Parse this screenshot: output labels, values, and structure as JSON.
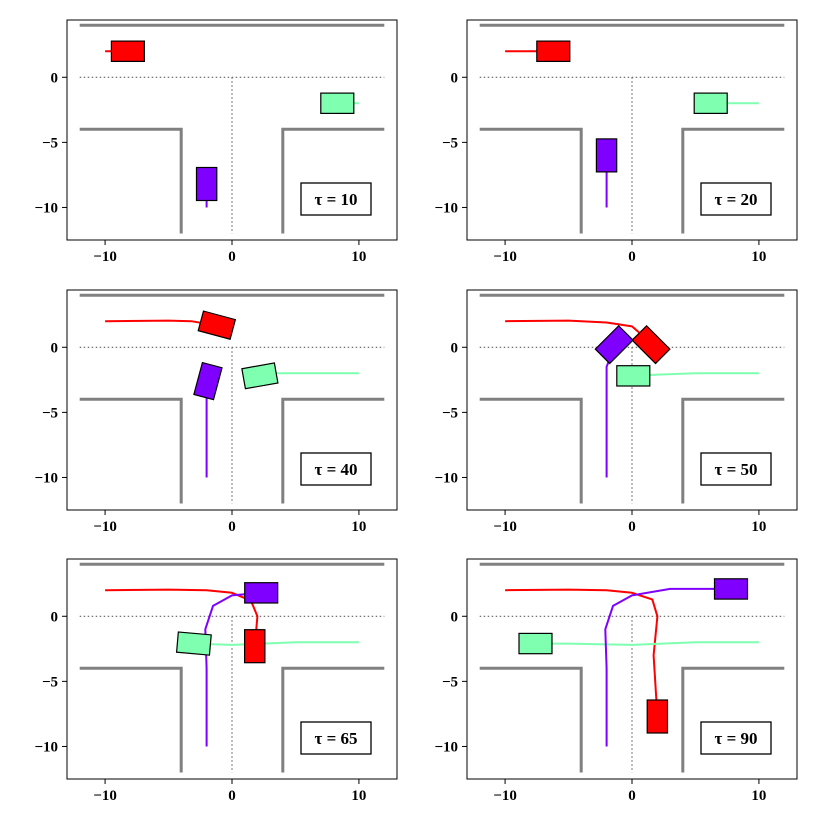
{
  "chart_data": [
    {
      "type": "scatter",
      "annotation": "τ = 10",
      "xlim": [
        -13,
        13
      ],
      "ylim": [
        -12.5,
        4.4
      ],
      "xticks": [
        -10,
        0,
        10
      ],
      "yticks": [
        0,
        -5,
        -10
      ],
      "walls": [
        [
          [
            -12,
            4
          ],
          [
            12,
            4
          ]
        ],
        [
          [
            -12,
            -4
          ],
          [
            -4,
            -4
          ],
          [
            -4,
            -12
          ]
        ],
        [
          [
            12,
            -4
          ],
          [
            4,
            -4
          ],
          [
            4,
            -12
          ]
        ]
      ],
      "centerlines": [
        [
          [
            -12,
            0
          ],
          [
            12,
            0
          ]
        ],
        [
          [
            0,
            0
          ],
          [
            0,
            -12
          ]
        ]
      ],
      "vehicles": [
        {
          "name": "red",
          "color": "#ff0000",
          "path": [
            [
              -10,
              2
            ],
            [
              -8.2,
              2
            ]
          ],
          "body": {
            "x": -8.2,
            "y": 2,
            "heading": 0
          }
        },
        {
          "name": "green",
          "color": "#7fffb0",
          "path": [
            [
              10,
              -2
            ],
            [
              8.3,
              -2
            ]
          ],
          "body": {
            "x": 8.3,
            "y": -2,
            "heading": 180
          }
        },
        {
          "name": "purple",
          "color": "#8000ff",
          "path": [
            [
              -2,
              -10
            ],
            [
              -2,
              -8.2
            ]
          ],
          "body": {
            "x": -2,
            "y": -8.2,
            "heading": 90
          }
        }
      ]
    },
    {
      "type": "scatter",
      "annotation": "τ = 20",
      "xlim": [
        -13,
        13
      ],
      "ylim": [
        -12.5,
        4.4
      ],
      "xticks": [
        -10,
        0,
        10
      ],
      "yticks": [
        0,
        -5,
        -10
      ],
      "walls": [
        [
          [
            -12,
            4
          ],
          [
            12,
            4
          ]
        ],
        [
          [
            -12,
            -4
          ],
          [
            -4,
            -4
          ],
          [
            -4,
            -12
          ]
        ],
        [
          [
            12,
            -4
          ],
          [
            4,
            -4
          ],
          [
            4,
            -12
          ]
        ]
      ],
      "centerlines": [
        [
          [
            -12,
            0
          ],
          [
            12,
            0
          ]
        ],
        [
          [
            0,
            0
          ],
          [
            0,
            -12
          ]
        ]
      ],
      "vehicles": [
        {
          "name": "red",
          "color": "#ff0000",
          "path": [
            [
              -10,
              2
            ],
            [
              -6.2,
              2
            ]
          ],
          "body": {
            "x": -6.2,
            "y": 2,
            "heading": 0
          }
        },
        {
          "name": "green",
          "color": "#7fffb0",
          "path": [
            [
              10,
              -2
            ],
            [
              6.2,
              -2
            ]
          ],
          "body": {
            "x": 6.2,
            "y": -2,
            "heading": 180
          }
        },
        {
          "name": "purple",
          "color": "#8000ff",
          "path": [
            [
              -2,
              -10
            ],
            [
              -2,
              -6
            ]
          ],
          "body": {
            "x": -2,
            "y": -6,
            "heading": 90
          }
        }
      ]
    },
    {
      "type": "scatter",
      "annotation": "τ = 40",
      "xlim": [
        -13,
        13
      ],
      "ylim": [
        -12.5,
        4.4
      ],
      "xticks": [
        -10,
        0,
        10
      ],
      "yticks": [
        0,
        -5,
        -10
      ],
      "walls": [
        [
          [
            -12,
            4
          ],
          [
            12,
            4
          ]
        ],
        [
          [
            -12,
            -4
          ],
          [
            -4,
            -4
          ],
          [
            -4,
            -12
          ]
        ],
        [
          [
            12,
            -4
          ],
          [
            4,
            -4
          ],
          [
            4,
            -12
          ]
        ]
      ],
      "centerlines": [
        [
          [
            -12,
            0
          ],
          [
            12,
            0
          ]
        ],
        [
          [
            0,
            0
          ],
          [
            0,
            -12
          ]
        ]
      ],
      "vehicles": [
        {
          "name": "red",
          "color": "#ff0000",
          "path": [
            [
              -10,
              2
            ],
            [
              -5,
              2.05
            ],
            [
              -3.2,
              2
            ],
            [
              -2,
              1.8
            ],
            [
              -1.2,
              1.7
            ]
          ],
          "body": {
            "x": -1.2,
            "y": 1.7,
            "heading": -15
          }
        },
        {
          "name": "green",
          "color": "#7fffb0",
          "path": [
            [
              10,
              -2
            ],
            [
              6,
              -2
            ],
            [
              3.5,
              -2
            ],
            [
              2.2,
              -2.2
            ]
          ],
          "body": {
            "x": 2.2,
            "y": -2.2,
            "heading": 190
          }
        },
        {
          "name": "purple",
          "color": "#8000ff",
          "path": [
            [
              -2,
              -10
            ],
            [
              -2,
              -5
            ],
            [
              -2,
              -3.3
            ],
            [
              -1.9,
              -2.6
            ]
          ],
          "body": {
            "x": -1.9,
            "y": -2.6,
            "heading": 75
          }
        }
      ]
    },
    {
      "type": "scatter",
      "annotation": "τ = 50",
      "xlim": [
        -13,
        13
      ],
      "ylim": [
        -12.5,
        4.4
      ],
      "xticks": [
        -10,
        0,
        10
      ],
      "yticks": [
        0,
        -5,
        -10
      ],
      "walls": [
        [
          [
            -12,
            4
          ],
          [
            12,
            4
          ]
        ],
        [
          [
            -12,
            -4
          ],
          [
            -4,
            -4
          ],
          [
            -4,
            -12
          ]
        ],
        [
          [
            12,
            -4
          ],
          [
            4,
            -4
          ],
          [
            4,
            -12
          ]
        ]
      ],
      "centerlines": [
        [
          [
            -12,
            0
          ],
          [
            12,
            0
          ]
        ],
        [
          [
            0,
            0
          ],
          [
            0,
            -12
          ]
        ]
      ],
      "vehicles": [
        {
          "name": "red",
          "color": "#ff0000",
          "path": [
            [
              -10,
              2
            ],
            [
              -5,
              2.05
            ],
            [
              -2,
              1.9
            ],
            [
              0,
              1.6
            ],
            [
              1.2,
              0.6
            ],
            [
              1.5,
              0
            ]
          ],
          "body": {
            "x": 1.5,
            "y": 0.2,
            "heading": -45
          }
        },
        {
          "name": "green",
          "color": "#7fffb0",
          "path": [
            [
              10,
              -2
            ],
            [
              5,
              -2
            ],
            [
              2,
              -2.1
            ],
            [
              0.1,
              -2.2
            ]
          ],
          "body": {
            "x": 0.1,
            "y": -2.2,
            "heading": 180
          }
        },
        {
          "name": "purple",
          "color": "#8000ff",
          "path": [
            [
              -2,
              -10
            ],
            [
              -2,
              -5
            ],
            [
              -2,
              -1.5
            ],
            [
              -1.6,
              -0.5
            ],
            [
              -1.4,
              0
            ]
          ],
          "body": {
            "x": -1.4,
            "y": 0.2,
            "heading": 45
          }
        }
      ]
    },
    {
      "type": "scatter",
      "annotation": "τ = 65",
      "xlim": [
        -13,
        13
      ],
      "ylim": [
        -12.5,
        4.4
      ],
      "xticks": [
        -10,
        0,
        10
      ],
      "yticks": [
        0,
        -5,
        -10
      ],
      "walls": [
        [
          [
            -12,
            4
          ],
          [
            12,
            4
          ]
        ],
        [
          [
            -12,
            -4
          ],
          [
            -4,
            -4
          ],
          [
            -4,
            -12
          ]
        ],
        [
          [
            12,
            -4
          ],
          [
            4,
            -4
          ],
          [
            4,
            -12
          ]
        ]
      ],
      "centerlines": [
        [
          [
            -12,
            0
          ],
          [
            12,
            0
          ]
        ],
        [
          [
            0,
            0
          ],
          [
            0,
            -12
          ]
        ]
      ],
      "vehicles": [
        {
          "name": "red",
          "color": "#ff0000",
          "path": [
            [
              -10,
              2
            ],
            [
              -5,
              2.05
            ],
            [
              -2,
              2
            ],
            [
              0,
              1.8
            ],
            [
              1.5,
              1.2
            ],
            [
              2,
              0
            ],
            [
              1.8,
              -2.3
            ]
          ],
          "body": {
            "x": 1.8,
            "y": -2.3,
            "heading": 270
          }
        },
        {
          "name": "green",
          "color": "#7fffb0",
          "path": [
            [
              10,
              -2
            ],
            [
              5,
              -2
            ],
            [
              0,
              -2.2
            ],
            [
              -3,
              -2.1
            ]
          ],
          "body": {
            "x": -3,
            "y": -2.1,
            "heading": 175
          }
        },
        {
          "name": "purple",
          "color": "#8000ff",
          "path": [
            [
              -2,
              -10
            ],
            [
              -2,
              -4
            ],
            [
              -2.1,
              -1
            ],
            [
              -1.5,
              0.8
            ],
            [
              0,
              1.6
            ],
            [
              2.3,
              1.8
            ]
          ],
          "body": {
            "x": 2.3,
            "y": 1.8,
            "heading": 0
          }
        }
      ]
    },
    {
      "type": "scatter",
      "annotation": "τ = 90",
      "xlim": [
        -13,
        13
      ],
      "ylim": [
        -12.5,
        4.4
      ],
      "xticks": [
        -10,
        0,
        10
      ],
      "yticks": [
        0,
        -5,
        -10
      ],
      "walls": [
        [
          [
            -12,
            4
          ],
          [
            12,
            4
          ]
        ],
        [
          [
            -12,
            -4
          ],
          [
            -4,
            -4
          ],
          [
            -4,
            -12
          ]
        ],
        [
          [
            12,
            -4
          ],
          [
            4,
            -4
          ],
          [
            4,
            -12
          ]
        ]
      ],
      "centerlines": [
        [
          [
            -12,
            0
          ],
          [
            12,
            0
          ]
        ],
        [
          [
            0,
            0
          ],
          [
            0,
            -12
          ]
        ]
      ],
      "vehicles": [
        {
          "name": "red",
          "color": "#ff0000",
          "path": [
            [
              -10,
              2
            ],
            [
              -5,
              2.05
            ],
            [
              -2,
              2
            ],
            [
              0,
              1.8
            ],
            [
              1.6,
              1.3
            ],
            [
              2,
              0
            ],
            [
              1.7,
              -3
            ],
            [
              2,
              -7.7
            ]
          ],
          "body": {
            "x": 2,
            "y": -7.7,
            "heading": 270
          }
        },
        {
          "name": "green",
          "color": "#7fffb0",
          "path": [
            [
              10,
              -2
            ],
            [
              5,
              -2
            ],
            [
              0,
              -2.2
            ],
            [
              -5,
              -2.1
            ],
            [
              -7.6,
              -2.1
            ]
          ],
          "body": {
            "x": -7.6,
            "y": -2.1,
            "heading": 180
          }
        },
        {
          "name": "purple",
          "color": "#8000ff",
          "path": [
            [
              -2,
              -10
            ],
            [
              -2,
              -4
            ],
            [
              -2.1,
              -1
            ],
            [
              -1.5,
              0.8
            ],
            [
              0,
              1.6
            ],
            [
              3,
              2.1
            ],
            [
              7.8,
              2.1
            ]
          ],
          "body": {
            "x": 7.8,
            "y": 2.1,
            "heading": 0
          }
        }
      ]
    }
  ]
}
